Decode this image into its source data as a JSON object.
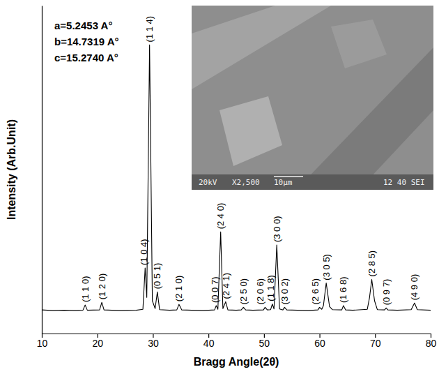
{
  "chart_data": {
    "type": "line",
    "x_label": "Bragg Angle(2θ)",
    "y_label": "Intensity (Arb.Unit)",
    "xlim": [
      10,
      80
    ],
    "xticks": [
      10,
      20,
      30,
      40,
      50,
      60,
      70,
      80
    ],
    "ylim": [
      0,
      100
    ],
    "tick_labels": "x",
    "grid": false,
    "color": "#000000",
    "x": [
      10,
      12,
      14,
      16,
      17.4,
      17.8,
      18.2,
      20.4,
      20.8,
      21.2,
      24,
      27,
      28.2,
      28.6,
      28.9,
      29.4,
      29.9,
      30.4,
      30.8,
      31.2,
      33,
      34.3,
      34.7,
      35.2,
      37,
      39,
      41.1,
      41.4,
      41.7,
      42.2,
      42.6,
      43.1,
      43.5,
      45,
      45.9,
      46.3,
      46.7,
      48,
      49.9,
      50.2,
      50.6,
      51.2,
      51.5,
      51.8,
      52.3,
      52.8,
      53.4,
      53.7,
      54.1,
      56,
      58,
      59.7,
      60.0,
      60.4,
      60.7,
      61.2,
      61.8,
      62.3,
      64.0,
      64.3,
      64.7,
      66,
      68.6,
      69.0,
      69.4,
      69.9,
      70.4,
      71.7,
      72.0,
      72.3,
      74,
      76.5,
      77.1,
      77.6,
      80
    ],
    "values": [
      7.2,
      7.0,
      7.1,
      7.0,
      7.1,
      8.7,
      7.1,
      7.2,
      9.5,
      7.2,
      7.0,
      7.1,
      7.4,
      20,
      11,
      88,
      10,
      7.6,
      12.7,
      7.3,
      7.1,
      7.2,
      8.9,
      7.2,
      7.1,
      7.0,
      7.2,
      8.5,
      7.4,
      31,
      7.6,
      9.7,
      7.2,
      7.1,
      7.2,
      8.0,
      7.2,
      7.1,
      7.2,
      8.0,
      7.2,
      7.3,
      9.0,
      7.5,
      27,
      7.5,
      7.2,
      8.0,
      7.2,
      7.1,
      7.0,
      7.2,
      8.0,
      7.4,
      8.5,
      15.4,
      8.2,
      7.3,
      7.2,
      8.5,
      7.2,
      7.1,
      7.4,
      11,
      16.5,
      10,
      7.3,
      7.2,
      7.8,
      7.2,
      7.1,
      7.3,
      9.3,
      7.3,
      7.1
    ],
    "peak_labels": [
      {
        "label": "(1 1 0)",
        "x": 17.8
      },
      {
        "label": "(1 2 0)",
        "x": 20.8
      },
      {
        "label": "(1 0 4)",
        "x": 28.6
      },
      {
        "label": "(1 1 4)",
        "x": 29.4
      },
      {
        "label": "(0 5 1)",
        "x": 30.8
      },
      {
        "label": "(2 1 0)",
        "x": 34.7
      },
      {
        "label": "(0 0 7)",
        "x": 41.4
      },
      {
        "label": "(2 4 0)",
        "x": 42.2
      },
      {
        "label": "(2 4 1)",
        "x": 43.1
      },
      {
        "label": "(2 5 0)",
        "x": 46.3
      },
      {
        "label": "(2 0 6)",
        "x": 50.2
      },
      {
        "label": "(1 1 8)",
        "x": 51.5
      },
      {
        "label": "(3 0 0)",
        "x": 52.3
      },
      {
        "label": "(3 0 2)",
        "x": 53.7
      },
      {
        "label": "(2 6 5)",
        "x": 60.0
      },
      {
        "label": "(3 0 5)",
        "x": 61.2
      },
      {
        "label": "(1 6 8)",
        "x": 64.3
      },
      {
        "label": "(2 8 5)",
        "x": 69.4
      },
      {
        "label": "(0 9 7)",
        "x": 72.0
      },
      {
        "label": "(4 9 0)",
        "x": 77.1
      }
    ],
    "annotations": [
      "a=5.2453 A°",
      "b=14.7319 A°",
      "c=15.2740 A°"
    ],
    "inset": {
      "caption": [
        "20kV",
        "X2,500",
        "10μm",
        "12 40 SEI"
      ]
    }
  }
}
